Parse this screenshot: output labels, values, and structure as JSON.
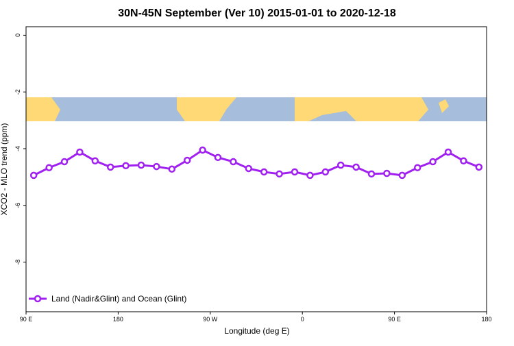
{
  "chart_data": {
    "type": "line",
    "title": "30N-45N September (Ver 10)   2015-01-01 to 2020-12-18",
    "x_label": "Longitude (deg E)",
    "y_label": "XCO2 - MLO trend (ppm)",
    "xlim": [
      90,
      540
    ],
    "ylim": [
      -9.75,
      0.3
    ],
    "xticks": [
      {
        "value": 90,
        "label": "90 E"
      },
      180,
      {
        "value": 270,
        "label": "90 W"
      },
      {
        "value": 360,
        "label": "0"
      },
      {
        "value": 450,
        "label": "90 E"
      },
      {
        "value": 540,
        "label": "180"
      }
    ],
    "yticks": [
      0,
      -2,
      -4,
      -6,
      -8
    ],
    "legend": "bottom-left",
    "x": [
      97.5,
      112.5,
      127.5,
      142.5,
      157.5,
      172.5,
      187.5,
      202.5,
      217.5,
      232.5,
      247.5,
      262.5,
      277.5,
      292.5,
      307.5,
      322.5,
      337.5,
      352.5,
      367.5,
      382.5,
      397.5,
      412.5,
      427.5,
      442.5,
      457.5,
      472.5,
      487.5,
      502.5,
      517.5,
      532.5
    ],
    "series": [
      {
        "name": "Land (Nadir&Glint) and Ocean (Glint)",
        "color": "#a020f0",
        "values": [
          -4.94,
          -4.67,
          -4.46,
          -4.12,
          -4.43,
          -4.65,
          -4.6,
          -4.58,
          -4.63,
          -4.72,
          -4.41,
          -4.05,
          -4.31,
          -4.46,
          -4.7,
          -4.82,
          -4.89,
          -4.82,
          -4.94,
          -4.82,
          -4.58,
          -4.65,
          -4.89,
          -4.87,
          -4.94,
          -4.67,
          -4.46,
          -4.12,
          -4.43,
          -4.65
        ]
      }
    ]
  }
}
